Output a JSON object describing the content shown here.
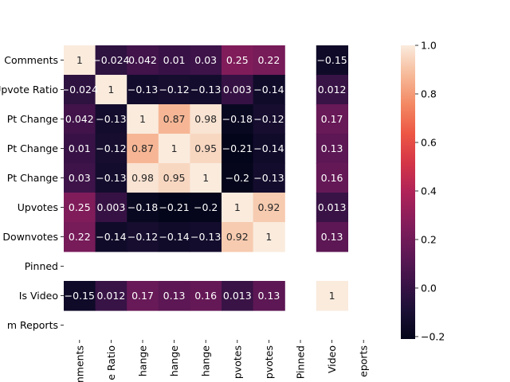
{
  "chart_data": {
    "type": "heatmap",
    "title": "",
    "xlabel": "",
    "ylabel": "",
    "row_labels": [
      "Comments",
      "Upvote Ratio",
      "Pt Change",
      "Pt Change",
      "Pt Change",
      "Upvotes",
      "Downvotes",
      "Pinned",
      "Is Video",
      "m Reports"
    ],
    "col_labels": [
      "mments",
      "e Ratio",
      "hange",
      "hange",
      "hange",
      "pvotes",
      "pvotes",
      "Pinned",
      "Video",
      "eports"
    ],
    "values": [
      [
        1,
        -0.024,
        0.042,
        0.01,
        0.03,
        0.25,
        0.22,
        null,
        -0.15,
        null
      ],
      [
        -0.024,
        1,
        -0.13,
        -0.12,
        -0.13,
        0.003,
        -0.14,
        null,
        0.012,
        null
      ],
      [
        0.042,
        -0.13,
        1,
        0.87,
        0.98,
        -0.18,
        -0.12,
        null,
        0.17,
        null
      ],
      [
        0.01,
        -0.12,
        0.87,
        1,
        0.95,
        -0.21,
        -0.14,
        null,
        0.13,
        null
      ],
      [
        0.03,
        -0.13,
        0.98,
        0.95,
        1,
        -0.2,
        -0.13,
        null,
        0.16,
        null
      ],
      [
        0.25,
        0.003,
        -0.18,
        -0.21,
        -0.2,
        1,
        0.92,
        null,
        0.013,
        null
      ],
      [
        0.22,
        -0.14,
        -0.12,
        -0.14,
        -0.13,
        0.92,
        1,
        null,
        0.13,
        null
      ],
      [
        null,
        null,
        null,
        null,
        null,
        null,
        null,
        null,
        null,
        null
      ],
      [
        -0.15,
        0.012,
        0.17,
        0.13,
        0.16,
        0.013,
        0.13,
        null,
        1,
        null
      ],
      [
        null,
        null,
        null,
        null,
        null,
        null,
        null,
        null,
        null,
        null
      ]
    ],
    "colorbar": {
      "vmin": -0.21,
      "vmax": 1.0,
      "ticks": [
        1.0,
        0.8,
        0.6,
        0.4,
        0.2,
        0.0,
        -0.2
      ],
      "tick_labels": [
        "1.0",
        "0.8",
        "0.6",
        "0.4",
        "0.2",
        "0.0",
        "−0.2"
      ],
      "colormap": "rocket"
    }
  }
}
